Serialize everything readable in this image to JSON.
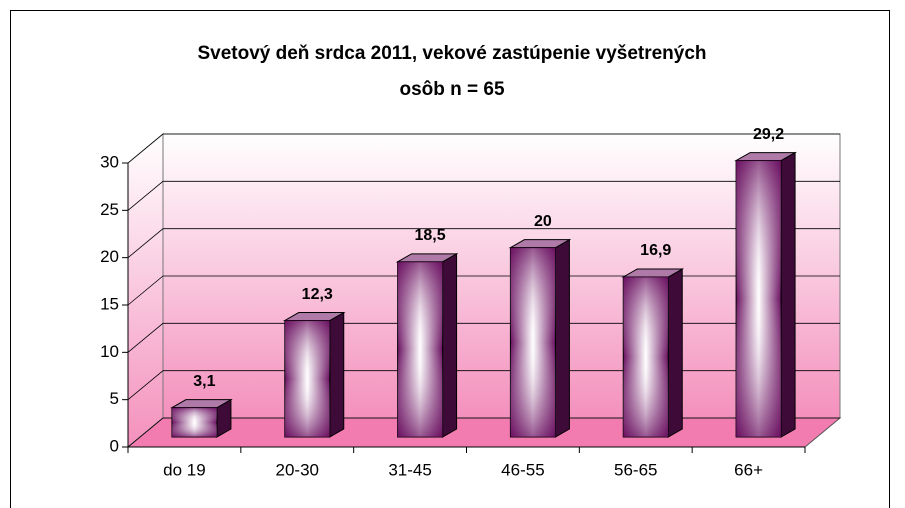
{
  "chart_data": {
    "type": "bar3d",
    "title": "Svetový deň srdca 2011, vekové zastúpenie vyšetrených osôb n = 65",
    "categories": [
      "do 19",
      "20-30",
      "31-45",
      "46-55",
      "56-65",
      "66+"
    ],
    "values": [
      3.1,
      12.3,
      18.5,
      20,
      16.9,
      29.2
    ],
    "value_labels": [
      "3,1",
      "12,3",
      "18,5",
      "20",
      "16,9",
      "29,2"
    ],
    "color": "#7a1a6e",
    "ylim": [
      0,
      30
    ],
    "yticks": [
      0,
      5,
      10,
      15,
      20,
      25,
      30
    ],
    "grid": true
  }
}
